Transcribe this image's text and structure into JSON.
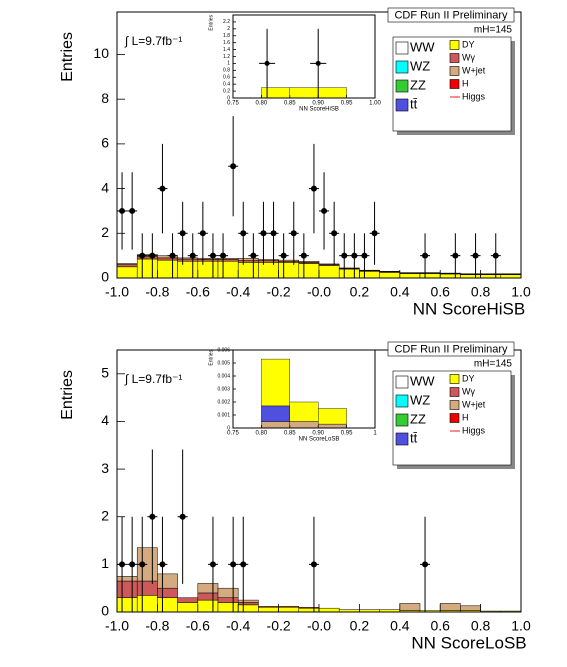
{
  "chart_data": [
    {
      "type": "histogram",
      "title": "CDF Run II Preliminary",
      "mass_label": "mH=145",
      "lumi_label": "∫ L=9.7fb⁻¹",
      "x_label": "NN ScoreHiSB",
      "y_label": "Entries",
      "xlim": [
        -1.0,
        1.0
      ],
      "ylim": [
        0,
        11.9
      ],
      "xticks": [
        {
          "value": -1,
          "label": "-1.0"
        },
        -0.8,
        -0.6,
        -0.4,
        -0.2,
        {
          "value": 0,
          "label": "-0.0"
        },
        0.2,
        0.4,
        0.6,
        0.8,
        {
          "value": 1,
          "label": "1.0"
        }
      ],
      "yticks": [
        0,
        2,
        4,
        6,
        8,
        10
      ],
      "bins": [
        -1.0,
        -0.9,
        -0.8,
        -0.7,
        -0.6,
        -0.5,
        -0.4,
        -0.3,
        -0.2,
        -0.1,
        0.0,
        0.1,
        0.2,
        0.3,
        0.4,
        0.5,
        0.6,
        0.7,
        0.8,
        0.9,
        1.0
      ],
      "series": [
        {
          "name": "DY",
          "color": "#ffff00",
          "values": [
            0.5,
            0.85,
            0.8,
            0.75,
            0.75,
            0.75,
            0.7,
            0.7,
            0.7,
            0.65,
            0.55,
            0.4,
            0.3,
            0.25,
            0.2,
            0.2,
            0.18,
            0.15,
            0.15,
            0.15
          ]
        },
        {
          "name": "Wγ",
          "color": "#cc5a5a",
          "values": [
            0.1,
            0.1,
            0.1,
            0.1,
            0.08,
            0.08,
            0.08,
            0.08,
            0.05,
            0.05,
            0.05,
            0.03,
            0.03,
            0.03,
            0.02,
            0.02,
            0.02,
            0.02,
            0.02,
            0.02
          ]
        },
        {
          "name": "W+jet",
          "color": "#d4aa80",
          "values": [
            0.05,
            0.1,
            0.1,
            0.05,
            0.05,
            0.05,
            0.1,
            0.05,
            0.05,
            0.05,
            0.03,
            0.02,
            0.02,
            0.02,
            0.02,
            0.02,
            0.02,
            0.02,
            0.02,
            0.02
          ]
        }
      ],
      "points": {
        "x": [
          -0.975,
          -0.925,
          -0.875,
          -0.825,
          -0.775,
          -0.725,
          -0.675,
          -0.625,
          -0.575,
          -0.525,
          -0.475,
          -0.425,
          -0.375,
          -0.325,
          -0.275,
          -0.225,
          -0.175,
          -0.125,
          -0.075,
          -0.025,
          0.025,
          0.075,
          0.125,
          0.175,
          0.225,
          0.275,
          0.525,
          0.675,
          0.775,
          0.875
        ],
        "values": [
          3,
          3,
          1,
          1,
          4,
          1,
          2,
          1,
          2,
          1,
          1,
          5,
          2,
          1,
          2,
          2,
          1,
          2,
          1,
          4,
          3,
          2,
          1,
          1,
          1,
          2,
          1,
          1,
          1,
          1
        ],
        "errors": [
          1.73,
          1.73,
          1,
          1,
          2,
          1,
          1.41,
          1,
          1.41,
          1,
          1,
          2.24,
          1.41,
          1,
          1.41,
          1.41,
          1,
          1.41,
          1,
          2,
          1.73,
          1.41,
          1,
          1,
          1,
          1.41,
          1,
          1,
          1,
          1
        ]
      },
      "legend": [
        {
          "name": "WW",
          "color": "#ffffff"
        },
        {
          "name": "WZ",
          "color": "#00ffff"
        },
        {
          "name": "ZZ",
          "color": "#33cc33"
        },
        {
          "name": "tt̄",
          "color": "#5050e0"
        },
        {
          "name": "DY",
          "color": "#ffff00"
        },
        {
          "name": "Wγ",
          "color": "#cc5a5a"
        },
        {
          "name": "W+jet",
          "color": "#d4aa80"
        },
        {
          "name": "H",
          "color": "#ee0000"
        },
        {
          "name": "Higgs",
          "color": "#ff6666",
          "style": "line"
        }
      ],
      "inset": {
        "x_label": "NN ScoreHiSB",
        "y_label": "Entries",
        "xlim": [
          0.75,
          1.0
        ],
        "ylim": [
          0,
          2.4
        ],
        "xticks": [
          0.75,
          {
            "value": 0.8,
            "label": "0.80"
          },
          0.85,
          {
            "value": 0.9,
            "label": "0.90"
          },
          0.95,
          {
            "value": 1,
            "label": "1.00"
          }
        ],
        "yticks": [
          0,
          0.2,
          0.4,
          0.6,
          0.8,
          1,
          1.2,
          1.4,
          1.6,
          1.8,
          2,
          2.2
        ],
        "bins": [
          0.75,
          0.8,
          0.85,
          0.9,
          0.95,
          1.0
        ],
        "series": [
          {
            "name": "DY",
            "color": "#ffff00",
            "values": [
              0,
              0.3,
              0.3,
              0.3,
              0
            ]
          }
        ],
        "points": {
          "x": [
            0.81,
            0.9
          ],
          "values": [
            1,
            1
          ],
          "errors": [
            1,
            1
          ]
        }
      }
    },
    {
      "type": "histogram",
      "title": "CDF Run II Preliminary",
      "mass_label": "mH=145",
      "lumi_label": "∫ L=9.7fb⁻¹",
      "x_label": "NN ScoreLoSB",
      "y_label": "Entries",
      "xlim": [
        -1.0,
        1.0
      ],
      "ylim": [
        0,
        5.5
      ],
      "xticks": [
        {
          "value": -1,
          "label": "-1.0"
        },
        -0.8,
        -0.6,
        -0.4,
        -0.2,
        {
          "value": 0,
          "label": "-0.0"
        },
        0.2,
        0.4,
        0.6,
        0.8,
        {
          "value": 1,
          "label": "1.0"
        }
      ],
      "yticks": [
        0,
        1,
        2,
        3,
        4,
        5
      ],
      "bins": [
        -1.0,
        -0.9,
        -0.8,
        -0.7,
        -0.6,
        -0.5,
        -0.4,
        -0.3,
        -0.2,
        -0.1,
        0.0,
        0.1,
        0.2,
        0.3,
        0.4,
        0.5,
        0.6,
        0.7,
        0.8,
        0.9,
        1.0
      ],
      "series": [
        {
          "name": "DY",
          "color": "#ffff00",
          "values": [
            0.3,
            0.35,
            0.3,
            0.2,
            0.25,
            0.2,
            0.15,
            0.1,
            0.1,
            0.08,
            0.08,
            0.05,
            0.05,
            0.05,
            0.03,
            0.03,
            0.03,
            0.03,
            0.02,
            0.02
          ]
        },
        {
          "name": "Wγ",
          "color": "#cc5a5a",
          "values": [
            0.35,
            0.3,
            0.2,
            0.1,
            0.15,
            0.1,
            0.05,
            0.02,
            0.02,
            0.02,
            0,
            0,
            0,
            0,
            0,
            0,
            0,
            0,
            0,
            0
          ]
        },
        {
          "name": "W+jet",
          "color": "#d4aa80",
          "values": [
            0.1,
            0.7,
            0.3,
            0,
            0.2,
            0.2,
            0.05,
            0,
            0,
            0,
            0,
            0,
            0,
            0,
            0.15,
            0,
            0.15,
            0.1,
            0,
            0
          ]
        }
      ],
      "points": {
        "x": [
          -0.975,
          -0.925,
          -0.875,
          -0.825,
          -0.775,
          -0.675,
          -0.525,
          -0.425,
          -0.375,
          -0.025,
          0.525
        ],
        "values": [
          1,
          1,
          1,
          2,
          1,
          2,
          1,
          1,
          1,
          1,
          1
        ],
        "errors": [
          1,
          1,
          1,
          1.41,
          1,
          1.41,
          1,
          1,
          1,
          1,
          1
        ]
      },
      "legend": [
        {
          "name": "WW",
          "color": "#ffffff"
        },
        {
          "name": "WZ",
          "color": "#00ffff"
        },
        {
          "name": "ZZ",
          "color": "#33cc33"
        },
        {
          "name": "tt̄",
          "color": "#5050e0"
        },
        {
          "name": "DY",
          "color": "#ffff00"
        },
        {
          "name": "Wγ",
          "color": "#cc5a5a"
        },
        {
          "name": "W+jet",
          "color": "#d4aa80"
        },
        {
          "name": "H",
          "color": "#ee0000"
        },
        {
          "name": "Higgs",
          "color": "#ff6666",
          "style": "line"
        }
      ],
      "inset": {
        "x_label": "NN ScoreLoSB",
        "y_label": "Entries",
        "xlim": [
          0.75,
          1.0
        ],
        "ylim": [
          0,
          0.006
        ],
        "xticks": [
          0.75,
          {
            "value": 0.8,
            "label": "0.80"
          },
          0.85,
          {
            "value": 0.9,
            "label": "0.90"
          },
          0.95,
          1
        ],
        "yticks": [
          0,
          0.001,
          0.002,
          0.003,
          0.004,
          0.005,
          0.006
        ],
        "bins": [
          0.75,
          0.8,
          0.85,
          0.9,
          0.95,
          1.0
        ],
        "series": [
          {
            "name": "W+jet",
            "color": "#d4aa80",
            "values": [
              0,
              0.0005,
              0.0005,
              0.0003,
              0
            ]
          },
          {
            "name": "tt̄",
            "color": "#5050e0",
            "values": [
              0,
              0.0012,
              0,
              0,
              0
            ]
          },
          {
            "name": "DY",
            "color": "#ffff00",
            "values": [
              0,
              0.0036,
              0.0015,
              0.0012,
              0
            ]
          }
        ],
        "points": {
          "x": [],
          "values": [],
          "errors": []
        }
      }
    }
  ]
}
